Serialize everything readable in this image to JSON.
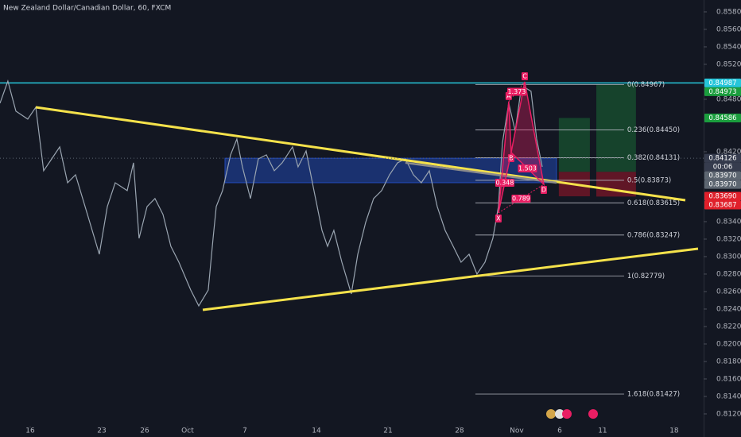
{
  "chart_data": {
    "type": "line",
    "title": "New Zealand Dollar/Canadian Dollar, 60, FXCM",
    "color": "#9aa5b1",
    "x": [
      -2.11,
      -1.56,
      -1.0,
      -0.17,
      0.39,
      0.94,
      1.5,
      2.06,
      2.61,
      3.17,
      4.0,
      4.83,
      5.39,
      5.94,
      6.78,
      7.22,
      7.61,
      8.17,
      8.72,
      9.28,
      9.83,
      10.39,
      11.22,
      11.78,
      12.44,
      12.78,
      13.0,
      13.44,
      14.0,
      14.44,
      14.83,
      15.39,
      15.94,
      16.5,
      17.06,
      17.61,
      18.33,
      18.72,
      19.28,
      19.83,
      20.39,
      20.78,
      21.22,
      21.78,
      22.44,
      22.89,
      23.44,
      24.0,
      24.56,
      25.11,
      25.67,
      26.22,
      26.78,
      27.33,
      27.89,
      28.44,
      29.0,
      29.56,
      30.11,
      30.67,
      31.22,
      31.78,
      32.33,
      32.72,
      33.0,
      33.44,
      33.89,
      34.28,
      34.56,
      35.0,
      35.39,
      35.78
    ],
    "values": [
      0.84755,
      0.85009,
      0.84664,
      0.84573,
      0.84709,
      0.83982,
      0.84118,
      0.84255,
      0.83845,
      0.83936,
      0.83482,
      0.83027,
      0.83573,
      0.83845,
      0.83755,
      0.84073,
      0.83209,
      0.83573,
      0.83664,
      0.83482,
      0.83118,
      0.82936,
      0.82618,
      0.82436,
      0.82618,
      0.83209,
      0.83573,
      0.83755,
      0.84164,
      0.84345,
      0.84027,
      0.83664,
      0.84118,
      0.84164,
      0.83982,
      0.84073,
      0.84255,
      0.84027,
      0.84209,
      0.83755,
      0.833,
      0.83118,
      0.833,
      0.82936,
      0.82573,
      0.83027,
      0.83391,
      0.83664,
      0.83755,
      0.83936,
      0.84073,
      0.84118,
      0.83936,
      0.83845,
      0.83982,
      0.83573,
      0.833,
      0.83118,
      0.82936,
      0.83027,
      0.828,
      0.82936,
      0.83209,
      0.83573,
      0.843,
      0.84755,
      0.84436,
      0.84891,
      0.84936,
      0.84891,
      0.84345,
      0.84027
    ],
    "xlim": [
      -2.11,
      47.06
    ],
    "xticks": [
      {
        "value": 0,
        "label": "16"
      },
      {
        "value": 5,
        "label": "23"
      },
      {
        "value": 8,
        "label": "26"
      },
      {
        "value": 11,
        "label": "Oct"
      },
      {
        "value": 15,
        "label": "7"
      },
      {
        "value": 20,
        "label": "14"
      },
      {
        "value": 25,
        "label": "21"
      },
      {
        "value": 30,
        "label": "28"
      },
      {
        "value": 34,
        "label": "Nov"
      },
      {
        "value": 37,
        "label": "6"
      },
      {
        "value": 40,
        "label": "11"
      },
      {
        "value": 45,
        "label": "18"
      }
    ],
    "ylim": [
      0.80936,
      0.85936
    ],
    "yticks": [
      {
        "value": 0.858,
        "label": "0.85800"
      },
      {
        "value": 0.856,
        "label": "0.85600"
      },
      {
        "value": 0.854,
        "label": "0.85400"
      },
      {
        "value": 0.852,
        "label": "0.85200"
      },
      {
        "value": 0.848,
        "label": "0.84800"
      },
      {
        "value": 0.842,
        "label": "0.84200"
      },
      {
        "value": 0.834,
        "label": "0.83400"
      },
      {
        "value": 0.832,
        "label": "0.83200"
      },
      {
        "value": 0.83,
        "label": "0.83000"
      },
      {
        "value": 0.828,
        "label": "0.82800"
      },
      {
        "value": 0.826,
        "label": "0.82600"
      },
      {
        "value": 0.824,
        "label": "0.82400"
      },
      {
        "value": 0.822,
        "label": "0.82200"
      },
      {
        "value": 0.82,
        "label": "0.82000"
      },
      {
        "value": 0.818,
        "label": "0.81800"
      },
      {
        "value": 0.816,
        "label": "0.81600"
      },
      {
        "value": 0.814,
        "label": "0.81400"
      },
      {
        "value": 0.812,
        "label": "0.81200"
      }
    ],
    "grid": false,
    "trendlines": [
      {
        "color": "#f5e24b",
        "x": [
          0.39,
          45.78
        ],
        "y": [
          0.84709,
          0.83645
        ]
      },
      {
        "color": "#f5e24b",
        "x": [
          12.06,
          46.67
        ],
        "y": [
          0.82391,
          0.83091
        ]
      },
      {
        "color": "#8c8c8c",
        "x": [
          26.22,
          36.78
        ],
        "y": [
          0.84073,
          0.83845
        ]
      }
    ],
    "resistance": {
      "value": 0.84987,
      "color": "#26c6da"
    },
    "zone": {
      "color": "#2962ff",
      "x": [
        13.61,
        36.78
      ],
      "y": [
        0.84126,
        0.83845
      ]
    },
    "fib": {
      "x": [
        31.11,
        41.5
      ],
      "levels": [
        {
          "value": 0.84967,
          "label": "0(0.84967)"
        },
        {
          "value": 0.8445,
          "label": "0.236(0.84450)"
        },
        {
          "value": 0.84131,
          "label": "0.382(0.84131)"
        },
        {
          "value": 0.83873,
          "label": "0.5(0.83873)"
        },
        {
          "value": 0.83615,
          "label": "0.618(0.83615)"
        },
        {
          "value": 0.83247,
          "label": "0.786(0.83247)"
        },
        {
          "value": 0.82779,
          "label": "1(0.82779)"
        },
        {
          "value": 0.81427,
          "label": "1.618(0.81427)"
        }
      ]
    },
    "pattern": {
      "color": "#e91e63",
      "points": [
        {
          "name": "X",
          "x": 32.72,
          "y": 0.835
        },
        {
          "name": "A",
          "x": 33.44,
          "y": 0.84773
        },
        {
          "name": "B",
          "x": 33.61,
          "y": 0.84191
        },
        {
          "name": "C",
          "x": 34.56,
          "y": 0.85
        },
        {
          "name": "D",
          "x": 35.89,
          "y": 0.83827
        }
      ],
      "ratios": [
        1.373,
        1.503,
        0.348,
        0.789
      ]
    },
    "positions": [
      {
        "x": [
          36.94,
          39.11
        ],
        "entry": 0.8397,
        "target": 0.84586,
        "stop": 0.8369
      },
      {
        "x": [
          39.56,
          42.33
        ],
        "entry": 0.8397,
        "target": 0.84973,
        "stop": 0.83687
      }
    ],
    "price_tags": [
      {
        "value": 0.84987,
        "label": "0.84987",
        "color": "#26c6da"
      },
      {
        "value": 0.84973,
        "label": "0.84973",
        "color": "#1b9e3e"
      },
      {
        "value": 0.84586,
        "label": "0.84586",
        "color": "#1b9e3e"
      },
      {
        "value": 0.84126,
        "label": "0.84126",
        "color": "#363c4e"
      },
      {
        "value": 0.8397,
        "label": "0.83970",
        "color": "#5d6671"
      },
      {
        "value": 0.8397,
        "label": "0.83970",
        "color": "#5d6671"
      },
      {
        "value": 0.8369,
        "label": "0.83690",
        "color": "#e0202b"
      },
      {
        "value": 0.83687,
        "label": "0.83687",
        "color": "#e0202b"
      }
    ],
    "countdown": "00:06"
  }
}
